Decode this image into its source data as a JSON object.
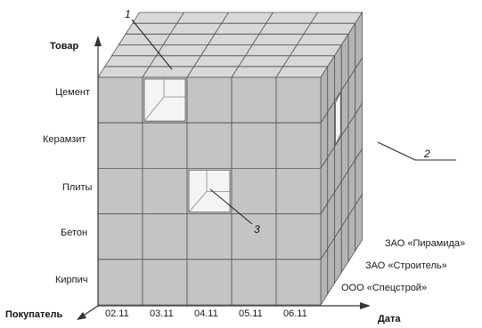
{
  "axes": {
    "vertical": "Товар",
    "horizontal": "Дата",
    "depth": "Покупатель"
  },
  "products": [
    "Цемент",
    "Керамзит",
    "Плиты",
    "Бетон",
    "Кирпич"
  ],
  "dates": [
    "02.11",
    "03.11",
    "04.11",
    "05.11",
    "06.11"
  ],
  "buyers": [
    "ООО «Спецстрой»",
    "ЗАО «Строитель»",
    "ЗАО «Пирамида»"
  ],
  "callouts": [
    "1",
    "2",
    "3"
  ],
  "colors": {
    "cell_front": "#c4c4c4",
    "cell_top": "#d8d8d8",
    "cell_side": "#b4b4b4",
    "grid_line": "#555555",
    "highlight": "#f4f4f4"
  }
}
